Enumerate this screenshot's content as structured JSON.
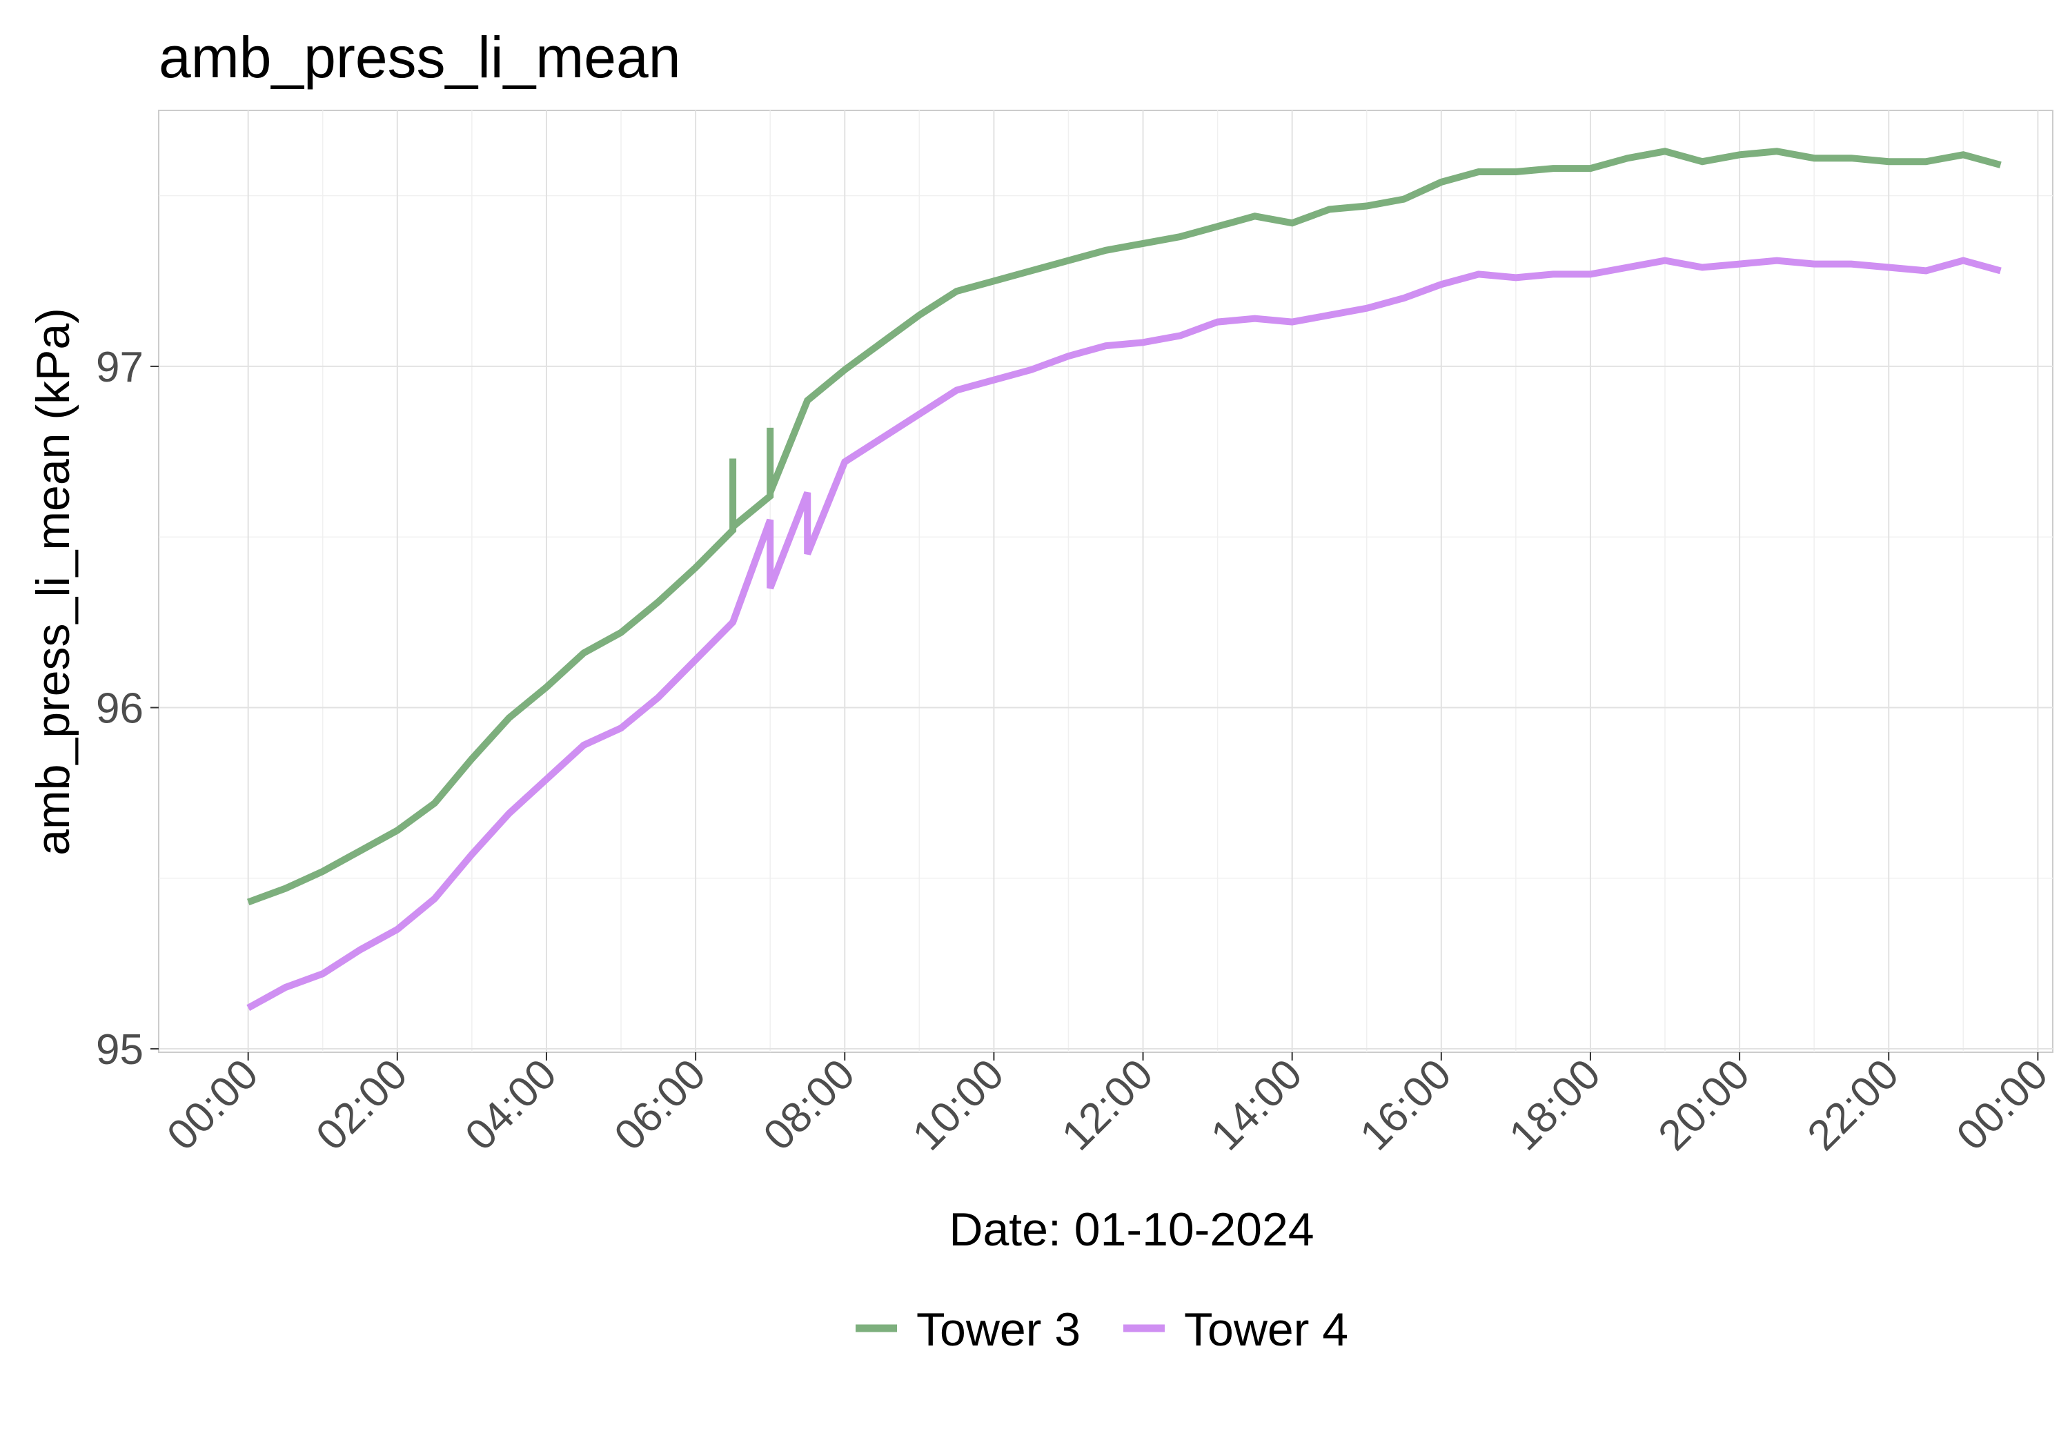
{
  "chart_data": {
    "type": "line",
    "title": "amb_press_li_mean",
    "xlabel": "Date: 01-10-2024",
    "ylabel": "amb_press_li_mean (kPa)",
    "x_axis": {
      "unit": "hours",
      "range": [
        -1.2,
        24.2
      ],
      "ticks": [
        0,
        2,
        4,
        6,
        8,
        10,
        12,
        14,
        16,
        18,
        20,
        22,
        24
      ],
      "tick_labels": [
        "00:00",
        "02:00",
        "04:00",
        "06:00",
        "08:00",
        "10:00",
        "12:00",
        "14:00",
        "16:00",
        "18:00",
        "20:00",
        "22:00",
        "00:00"
      ]
    },
    "y_axis": {
      "range": [
        94.99,
        97.75
      ],
      "ticks": [
        95,
        96,
        97
      ],
      "tick_labels": [
        "95",
        "96",
        "97"
      ]
    },
    "grid": true,
    "legend_position": "bottom",
    "series": [
      {
        "name": "Tower 3",
        "color": "#7daf7d",
        "points": [
          [
            0.0,
            95.43
          ],
          [
            0.5,
            95.47
          ],
          [
            1.0,
            95.52
          ],
          [
            1.5,
            95.58
          ],
          [
            2.0,
            95.64
          ],
          [
            2.5,
            95.72
          ],
          [
            3.0,
            95.85
          ],
          [
            3.5,
            95.97
          ],
          [
            4.0,
            96.06
          ],
          [
            4.5,
            96.16
          ],
          [
            5.0,
            96.22
          ],
          [
            5.5,
            96.31
          ],
          [
            6.0,
            96.41
          ],
          [
            6.5,
            96.52
          ],
          [
            6.5,
            96.73
          ],
          [
            6.5,
            96.53
          ],
          [
            7.0,
            96.62
          ],
          [
            7.0,
            96.82
          ],
          [
            7.0,
            96.63
          ],
          [
            7.5,
            96.9
          ],
          [
            8.0,
            96.99
          ],
          [
            8.5,
            97.07
          ],
          [
            9.0,
            97.15
          ],
          [
            9.5,
            97.22
          ],
          [
            10.0,
            97.25
          ],
          [
            10.5,
            97.28
          ],
          [
            11.0,
            97.31
          ],
          [
            11.5,
            97.34
          ],
          [
            12.0,
            97.36
          ],
          [
            12.5,
            97.38
          ],
          [
            13.0,
            97.41
          ],
          [
            13.5,
            97.44
          ],
          [
            14.0,
            97.42
          ],
          [
            14.5,
            97.46
          ],
          [
            15.0,
            97.47
          ],
          [
            15.5,
            97.49
          ],
          [
            16.0,
            97.54
          ],
          [
            16.5,
            97.57
          ],
          [
            17.0,
            97.57
          ],
          [
            17.5,
            97.58
          ],
          [
            18.0,
            97.58
          ],
          [
            18.5,
            97.61
          ],
          [
            19.0,
            97.63
          ],
          [
            19.5,
            97.6
          ],
          [
            20.0,
            97.62
          ],
          [
            20.5,
            97.63
          ],
          [
            21.0,
            97.61
          ],
          [
            21.5,
            97.61
          ],
          [
            22.0,
            97.6
          ],
          [
            22.5,
            97.6
          ],
          [
            23.0,
            97.62
          ],
          [
            23.5,
            97.59
          ]
        ]
      },
      {
        "name": "Tower 4",
        "color": "#cf8ff2",
        "points": [
          [
            0.0,
            95.12
          ],
          [
            0.5,
            95.18
          ],
          [
            1.0,
            95.22
          ],
          [
            1.5,
            95.29
          ],
          [
            2.0,
            95.35
          ],
          [
            2.5,
            95.44
          ],
          [
            3.0,
            95.57
          ],
          [
            3.5,
            95.69
          ],
          [
            4.0,
            95.79
          ],
          [
            4.5,
            95.89
          ],
          [
            5.0,
            95.94
          ],
          [
            5.5,
            96.03
          ],
          [
            6.0,
            96.14
          ],
          [
            6.5,
            96.25
          ],
          [
            7.0,
            96.55
          ],
          [
            7.0,
            96.35
          ],
          [
            7.5,
            96.63
          ],
          [
            7.5,
            96.45
          ],
          [
            8.0,
            96.72
          ],
          [
            8.5,
            96.79
          ],
          [
            9.0,
            96.86
          ],
          [
            9.5,
            96.93
          ],
          [
            10.0,
            96.96
          ],
          [
            10.5,
            96.99
          ],
          [
            11.0,
            97.03
          ],
          [
            11.5,
            97.06
          ],
          [
            12.0,
            97.07
          ],
          [
            12.5,
            97.09
          ],
          [
            13.0,
            97.13
          ],
          [
            13.5,
            97.14
          ],
          [
            14.0,
            97.13
          ],
          [
            14.5,
            97.15
          ],
          [
            15.0,
            97.17
          ],
          [
            15.5,
            97.2
          ],
          [
            16.0,
            97.24
          ],
          [
            16.5,
            97.27
          ],
          [
            17.0,
            97.26
          ],
          [
            17.5,
            97.27
          ],
          [
            18.0,
            97.27
          ],
          [
            18.5,
            97.29
          ],
          [
            19.0,
            97.31
          ],
          [
            19.5,
            97.29
          ],
          [
            20.0,
            97.3
          ],
          [
            20.5,
            97.31
          ],
          [
            21.0,
            97.3
          ],
          [
            21.5,
            97.3
          ],
          [
            22.0,
            97.29
          ],
          [
            22.5,
            97.28
          ],
          [
            23.0,
            97.31
          ],
          [
            23.5,
            97.28
          ]
        ]
      }
    ]
  }
}
